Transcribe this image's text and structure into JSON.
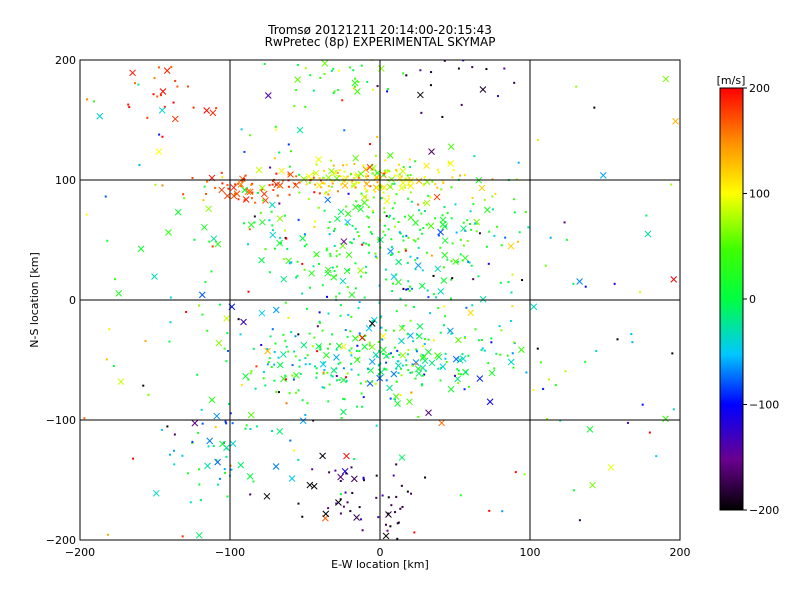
{
  "chart_data": {
    "type": "scatter",
    "title": "Tromsø 20121211 20:14:00-20:15:43",
    "subtitle": "RwPretec (8p) EXPERIMENTAL SKYMAP",
    "xlabel": "E-W location [km]",
    "ylabel": "N-S location [km]",
    "xlim": [
      -200,
      200
    ],
    "ylim": [
      -200,
      200
    ],
    "xticks": [
      -200,
      -100,
      0,
      100,
      200
    ],
    "yticks": [
      -200,
      -100,
      0,
      100,
      200
    ],
    "grid": true,
    "colorbar": {
      "label": "[m/s]",
      "range": [
        -200,
        200
      ],
      "ticks": [
        200,
        100,
        0,
        -100,
        -200
      ],
      "colormap": "rainbow-black-to-red"
    },
    "markers": [
      "dot",
      "cross"
    ],
    "clusters": [
      {
        "x": 0,
        "y": 100,
        "sx": 30,
        "sy": 8,
        "n": 170,
        "v": 100,
        "vs": 25
      },
      {
        "x": -80,
        "y": 95,
        "sx": 25,
        "sy": 6,
        "n": 70,
        "v": 175,
        "vs": 15
      },
      {
        "x": 0,
        "y": 55,
        "sx": 55,
        "sy": 25,
        "n": 260,
        "v": 15,
        "vs": 35
      },
      {
        "x": -5,
        "y": -55,
        "sx": 45,
        "sy": 16,
        "n": 240,
        "v": 5,
        "vs": 40
      },
      {
        "x": -10,
        "y": -15,
        "sx": 60,
        "sy": 30,
        "n": 120,
        "v": -10,
        "vs": 45
      },
      {
        "x": -105,
        "y": -125,
        "sx": 22,
        "sy": 22,
        "n": 55,
        "v": -30,
        "vs": 40
      },
      {
        "x": -25,
        "y": -162,
        "sx": 22,
        "sy": 14,
        "n": 45,
        "v": -170,
        "vs": 30
      },
      {
        "x": 10,
        "y": -175,
        "sx": 4,
        "sy": 12,
        "n": 12,
        "v": -190,
        "vs": 10
      },
      {
        "x": -150,
        "y": 175,
        "sx": 30,
        "sy": 18,
        "n": 28,
        "v": 180,
        "vs": 15
      },
      {
        "x": 55,
        "y": 180,
        "sx": 25,
        "sy": 15,
        "n": 18,
        "v": -180,
        "vs": 25
      },
      {
        "x": -30,
        "y": 185,
        "sx": 25,
        "sy": 10,
        "n": 35,
        "v": 30,
        "vs": 40
      },
      {
        "x": 0,
        "y": 0,
        "sx": 130,
        "sy": 120,
        "n": 240,
        "v": 0,
        "vs": 150
      }
    ]
  }
}
